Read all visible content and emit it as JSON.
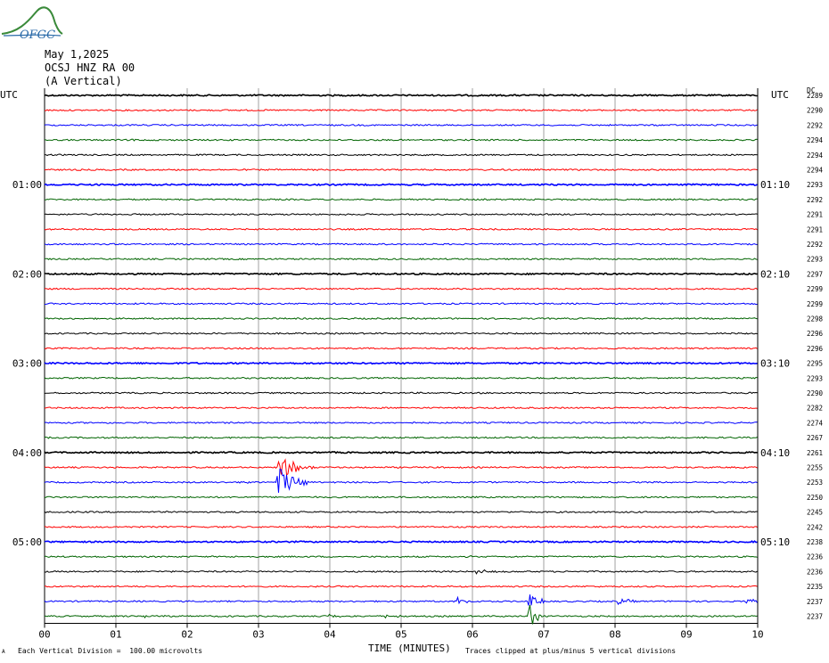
{
  "header": {
    "date": "May 1,2025",
    "station": "OCSJ HNZ RA 00",
    "component": "(A Vertical)",
    "utc_left": "UTC",
    "utc_right": "UTC",
    "dc_label": "DC",
    "logo_text": "OFGC"
  },
  "footer": {
    "scale_note": "Each Vertical Division =  100.00 microvolts",
    "clip_note": "Traces clipped at plus/minus 5 vertical divisions",
    "mark": "A"
  },
  "colors": {
    "black": "#000000",
    "red": "#ff0000",
    "blue": "#0000ff",
    "green": "#006400",
    "grid": "#a0a0a0"
  },
  "chart_data": {
    "type": "line",
    "title": "",
    "xlabel": "TIME (MINUTES)",
    "x_ticks": [
      "00",
      "01",
      "02",
      "03",
      "04",
      "05",
      "06",
      "07",
      "08",
      "09",
      "10"
    ],
    "xlim": [
      0,
      10
    ],
    "grid": true,
    "trace_color_cycle": [
      "black",
      "red",
      "blue",
      "green"
    ],
    "left_time_labels": [
      "01:00",
      "02:00",
      "03:00",
      "04:00",
      "05:00"
    ],
    "right_time_labels": [
      "01:10",
      "02:10",
      "03:10",
      "04:10",
      "05:10"
    ],
    "dc_values": [
      "2289",
      "2290",
      "2292",
      "2294",
      "2294",
      "2294",
      "2293",
      "2292",
      "2291",
      "2291",
      "2292",
      "2293",
      "2297",
      "2299",
      "2299",
      "2298",
      "2296",
      "2296",
      "2295",
      "2293",
      "2290",
      "2282",
      "2274",
      "2267",
      "2261",
      "2255",
      "2253",
      "2250",
      "2245",
      "2242",
      "2238",
      "2236",
      "2236",
      "2235",
      "2237",
      "2237"
    ],
    "events": [
      {
        "trace": 3,
        "minute": 1.25,
        "amplitude": 0.8
      },
      {
        "trace": 11,
        "minute": 3.85,
        "amplitude": 0.3
      },
      {
        "trace": 25,
        "minute": 3.3,
        "amplitude": 4.0,
        "duration": 0.5
      },
      {
        "trace": 26,
        "minute": 3.25,
        "amplitude": 6.0,
        "duration": 0.5
      },
      {
        "trace": 26,
        "minute": 2.75,
        "amplitude": 0.6,
        "duration": 0.3
      },
      {
        "trace": 31,
        "minute": 6.0,
        "amplitude": 0.4
      },
      {
        "trace": 32,
        "minute": 6.05,
        "amplitude": 0.8,
        "duration": 0.4
      },
      {
        "trace": 33,
        "minute": 1.6,
        "amplitude": 0.7
      },
      {
        "trace": 34,
        "minute": 5.8,
        "amplitude": 2.0,
        "duration": 0.3
      },
      {
        "trace": 34,
        "minute": 6.8,
        "amplitude": 2.5,
        "duration": 0.3
      },
      {
        "trace": 34,
        "minute": 8.05,
        "amplitude": 1.2,
        "duration": 0.3
      },
      {
        "trace": 34,
        "minute": 9.85,
        "amplitude": 1.0,
        "duration": 0.3
      },
      {
        "trace": 34,
        "minute": 1.15,
        "amplitude": 0.5
      },
      {
        "trace": 35,
        "minute": 3.95,
        "amplitude": 1.0,
        "duration": 0.4
      },
      {
        "trace": 35,
        "minute": 6.8,
        "amplitude": 5.0,
        "duration": 0.2
      },
      {
        "trace": 35,
        "minute": 1.4,
        "amplitude": 0.5,
        "duration": 0.4
      },
      {
        "trace": 35,
        "minute": 4.8,
        "amplitude": 0.6,
        "duration": 0.4
      }
    ]
  }
}
